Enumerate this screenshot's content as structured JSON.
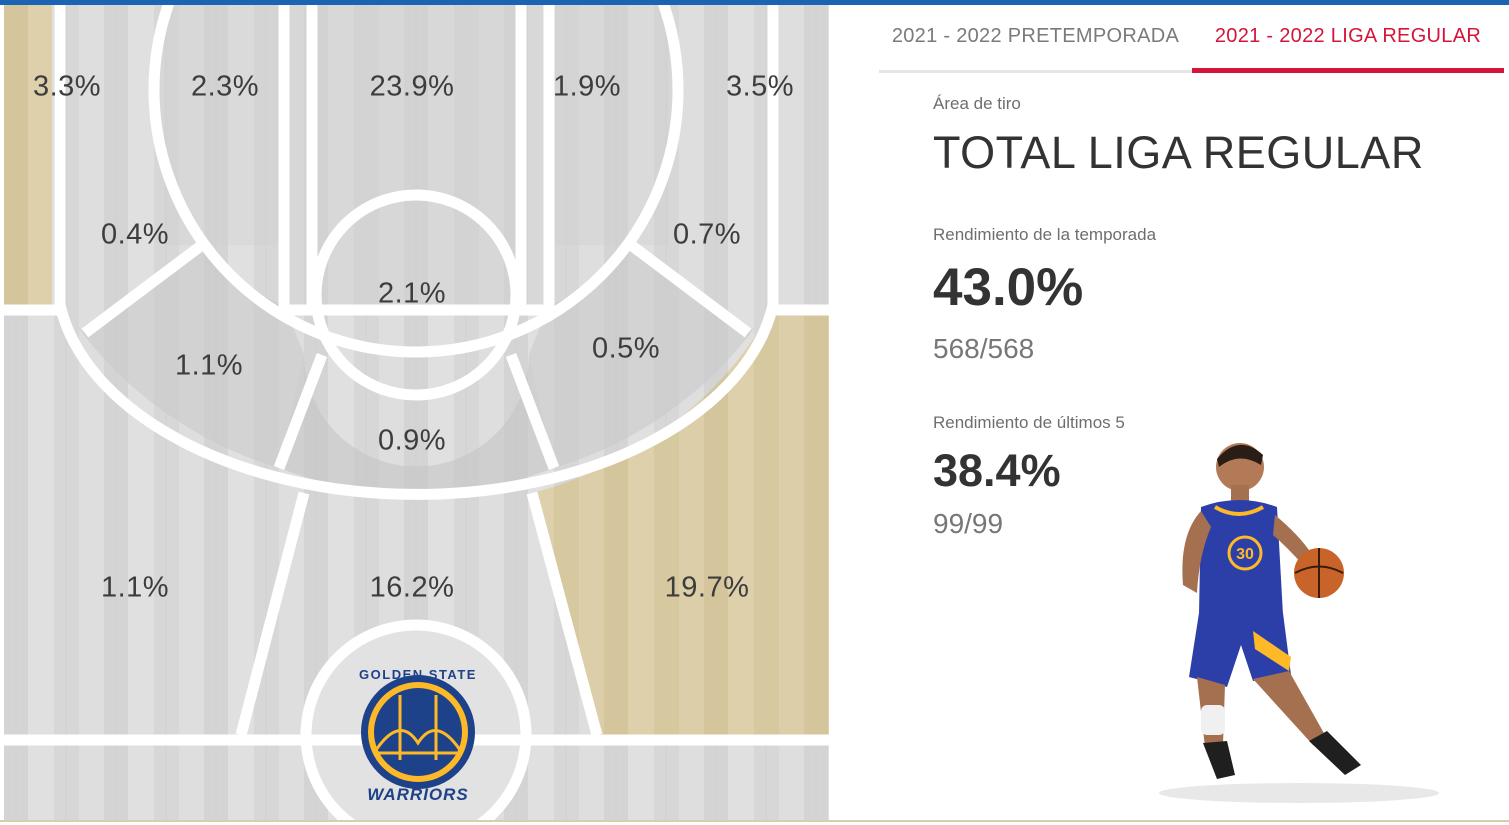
{
  "tabs": [
    {
      "label": "2021 - 2022 PRETEMPORADA",
      "active": false
    },
    {
      "label": "2021 - 2022 LIGA REGULAR",
      "active": true
    }
  ],
  "stats": {
    "area_label": "Área de tiro",
    "area_title": "TOTAL LIGA REGULAR",
    "season_label": "Rendimiento de la temporada",
    "season_pct": "43.0%",
    "season_ratio": "568/568",
    "last5_label": "Rendimiento de últimos 5",
    "last5_pct": "38.4%",
    "last5_ratio": "99/99"
  },
  "zones": {
    "left_corner_three": "3.3%",
    "left_baseline_mid": "2.3%",
    "restricted_paint": "23.9%",
    "right_baseline_mid": "1.9%",
    "right_corner_three": "3.5%",
    "left_mid_elbow": "0.4%",
    "right_mid_elbow": "0.7%",
    "free_throw_area": "2.1%",
    "left_wing_mid": "1.1%",
    "right_wing_mid": "0.5%",
    "top_key_mid": "0.9%",
    "left_wing_three": "1.1%",
    "top_three": "16.2%",
    "right_wing_three": "19.7%"
  },
  "colors": {
    "tab_active": "#d5143a",
    "highlight_zone": "#d8caa2",
    "top_strip": "#1d63b4"
  },
  "logo": {
    "top_text": "GOLDEN STATE",
    "bottom_text": "WARRIORS"
  },
  "player_image": "player-photo"
}
